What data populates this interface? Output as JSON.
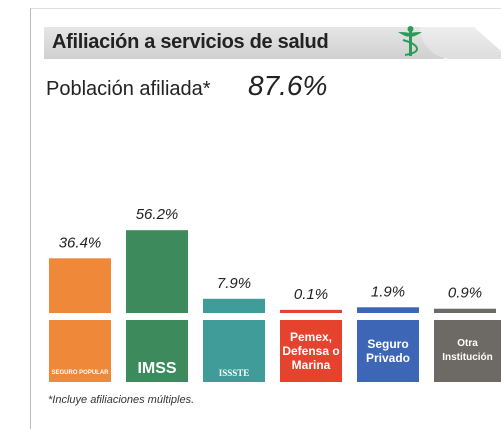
{
  "chart_data": {
    "type": "bar",
    "title": "Afiliación a servicios de salud",
    "subtitle": "Población afiliada*",
    "headline": {
      "value": 87.6,
      "label": "87.6%"
    },
    "categories": [
      "Seguro Popular",
      "IMSS",
      "ISSSTE",
      "Pemex, Defensa o Marina",
      "Seguro Privado",
      "Otra Institución"
    ],
    "values": [
      36.4,
      56.2,
      7.9,
      0.1,
      1.9,
      0.9
    ],
    "value_labels": [
      "36.4%",
      "56.2%",
      "7.9%",
      "0.1%",
      "1.9%",
      "0.9%"
    ],
    "colors": [
      "#f0883a",
      "#3d8a5c",
      "#3f9c98",
      "#e5432d",
      "#3d66b6",
      "#6d6964"
    ],
    "footnote": "*Incluye afiliaciones múltiples."
  }
}
